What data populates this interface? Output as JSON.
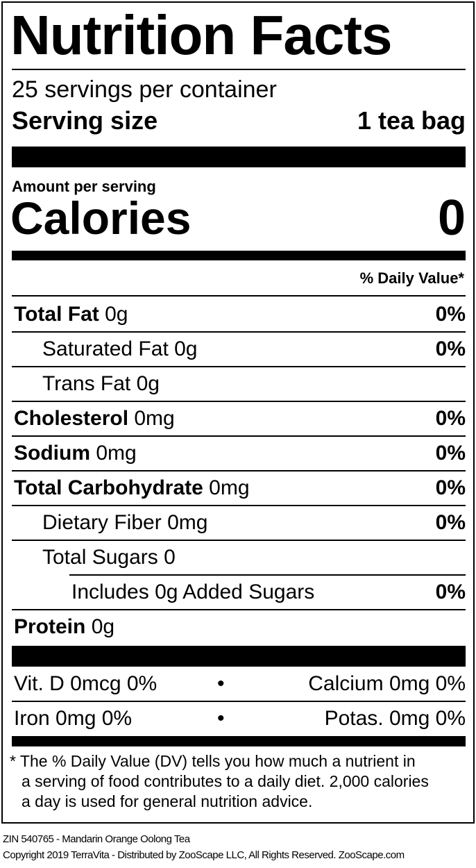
{
  "title": "Nutrition Facts",
  "servings_per_container": "25 servings per container",
  "serving_size": {
    "label": "Serving size",
    "value": "1 tea bag"
  },
  "amount_per_serving": "Amount per serving",
  "calories": {
    "label": "Calories",
    "value": "0"
  },
  "dv_header": "% Daily Value*",
  "nutrients": [
    {
      "name": "Total Fat",
      "amount": "0g",
      "dv": "0%",
      "bold": true,
      "indent": 0
    },
    {
      "name": "Saturated Fat",
      "amount": "0g",
      "dv": "0%",
      "bold": false,
      "indent": 1
    },
    {
      "name": "Trans Fat",
      "amount": "0g",
      "dv": "",
      "bold": false,
      "indent": 1
    },
    {
      "name": "Cholesterol",
      "amount": "0mg",
      "dv": "0%",
      "bold": true,
      "indent": 0
    },
    {
      "name": "Sodium",
      "amount": "0mg",
      "dv": "0%",
      "bold": true,
      "indent": 0
    },
    {
      "name": "Total Carbohydrate",
      "amount": "0mg",
      "dv": "0%",
      "bold": true,
      "indent": 0
    },
    {
      "name": "Dietary Fiber",
      "amount": "0mg",
      "dv": "0%",
      "bold": false,
      "indent": 1
    },
    {
      "name": "Total Sugars",
      "amount": "0",
      "dv": "",
      "bold": false,
      "indent": 1
    },
    {
      "name": "Includes 0g Added Sugars",
      "amount": "",
      "dv": "0%",
      "bold": false,
      "indent": 2
    },
    {
      "name": "Protein",
      "amount": "0g",
      "dv": "",
      "bold": true,
      "indent": 0
    }
  ],
  "vitamins": [
    {
      "left": "Vit. D 0mcg 0%",
      "bullet": "•",
      "right": "Calcium 0mg 0%"
    },
    {
      "left": "Iron 0mg 0%",
      "bullet": "•",
      "right": "Potas. 0mg 0%"
    }
  ],
  "footnote": [
    "* The % Daily Value (DV) tells you how much a nutrient in",
    "a serving of food contributes to a daily diet. 2,000 calories",
    "a day is used for general nutrition advice."
  ],
  "product_line": "ZIN 540765 - Mandarin Orange Oolong Tea",
  "copyright": "Copyright 2019 TerraVita - Distributed by ZooScape LLC, All Rights Reserved. ZooScape.com"
}
